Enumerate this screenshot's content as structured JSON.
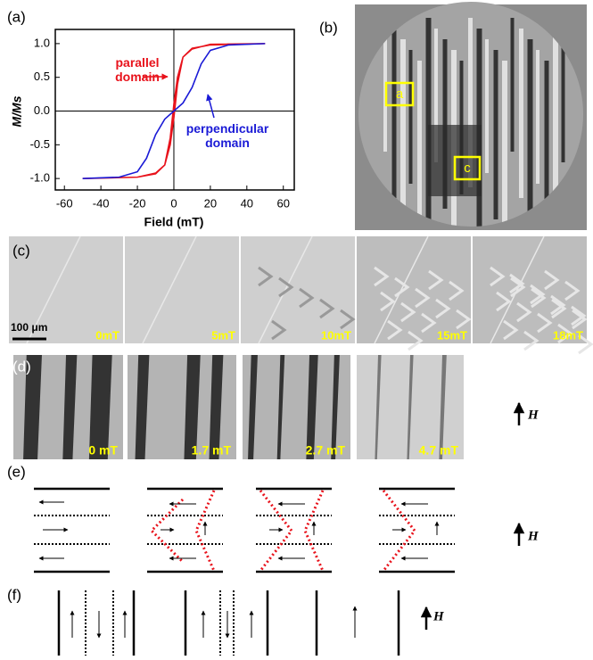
{
  "chart_data": {
    "type": "line",
    "panel_label": "(a)",
    "x_label": "Field (mT)",
    "y_label": "M/Ms",
    "xlim": [
      -65,
      66
    ],
    "xticks": [
      -60,
      -40,
      -20,
      0,
      20,
      40,
      60
    ],
    "ylim": [
      -1.17,
      1.21
    ],
    "yticks": [
      {
        "value": -1,
        "label": "-1.0"
      },
      {
        "value": -0.5,
        "label": "-0.5"
      },
      {
        "value": 0,
        "label": "0.0"
      },
      {
        "value": 0.5,
        "label": "0.5"
      },
      {
        "value": 1,
        "label": "1.0"
      }
    ],
    "series": [
      {
        "name": "parallel domain",
        "color": "#e8121b",
        "x": [
          -50,
          -20,
          -10,
          -5,
          -2,
          0,
          2,
          5,
          10,
          20,
          50,
          20,
          10,
          5,
          2,
          0,
          -2,
          -5,
          -10,
          -20,
          -50
        ],
        "values": [
          -1.0,
          -0.98,
          -0.92,
          -0.8,
          -0.5,
          -0.1,
          0.4,
          0.8,
          0.93,
          0.98,
          1.0,
          0.99,
          0.92,
          0.8,
          0.5,
          0.1,
          -0.4,
          -0.8,
          -0.93,
          -0.98,
          -1.0
        ]
      },
      {
        "name": "perpendicular domain",
        "color": "#1a1ad6",
        "x": [
          -50,
          -30,
          -20,
          -15,
          -10,
          -5,
          0,
          5,
          10,
          15,
          20,
          30,
          50
        ],
        "values": [
          -1.0,
          -0.98,
          -0.9,
          -0.7,
          -0.35,
          -0.12,
          0,
          0.12,
          0.35,
          0.7,
          0.9,
          0.98,
          1.0
        ]
      }
    ]
  },
  "panel_b": {
    "label": "(b)",
    "regions": [
      "a",
      "c"
    ]
  },
  "panel_c": {
    "label": "(c)",
    "scale_bar": "100 μm",
    "frames": [
      "0mT",
      "5mT",
      "10mT",
      "15mT",
      "18mT"
    ]
  },
  "panel_d": {
    "label": "(d)",
    "frames": [
      "0 mT",
      "1.7 mT",
      "2.7 mT",
      "4.7 mT"
    ],
    "field": "H"
  },
  "panel_e": {
    "label": "(e)",
    "field": "H"
  },
  "panel_f": {
    "label": "(f)",
    "field": "H"
  }
}
